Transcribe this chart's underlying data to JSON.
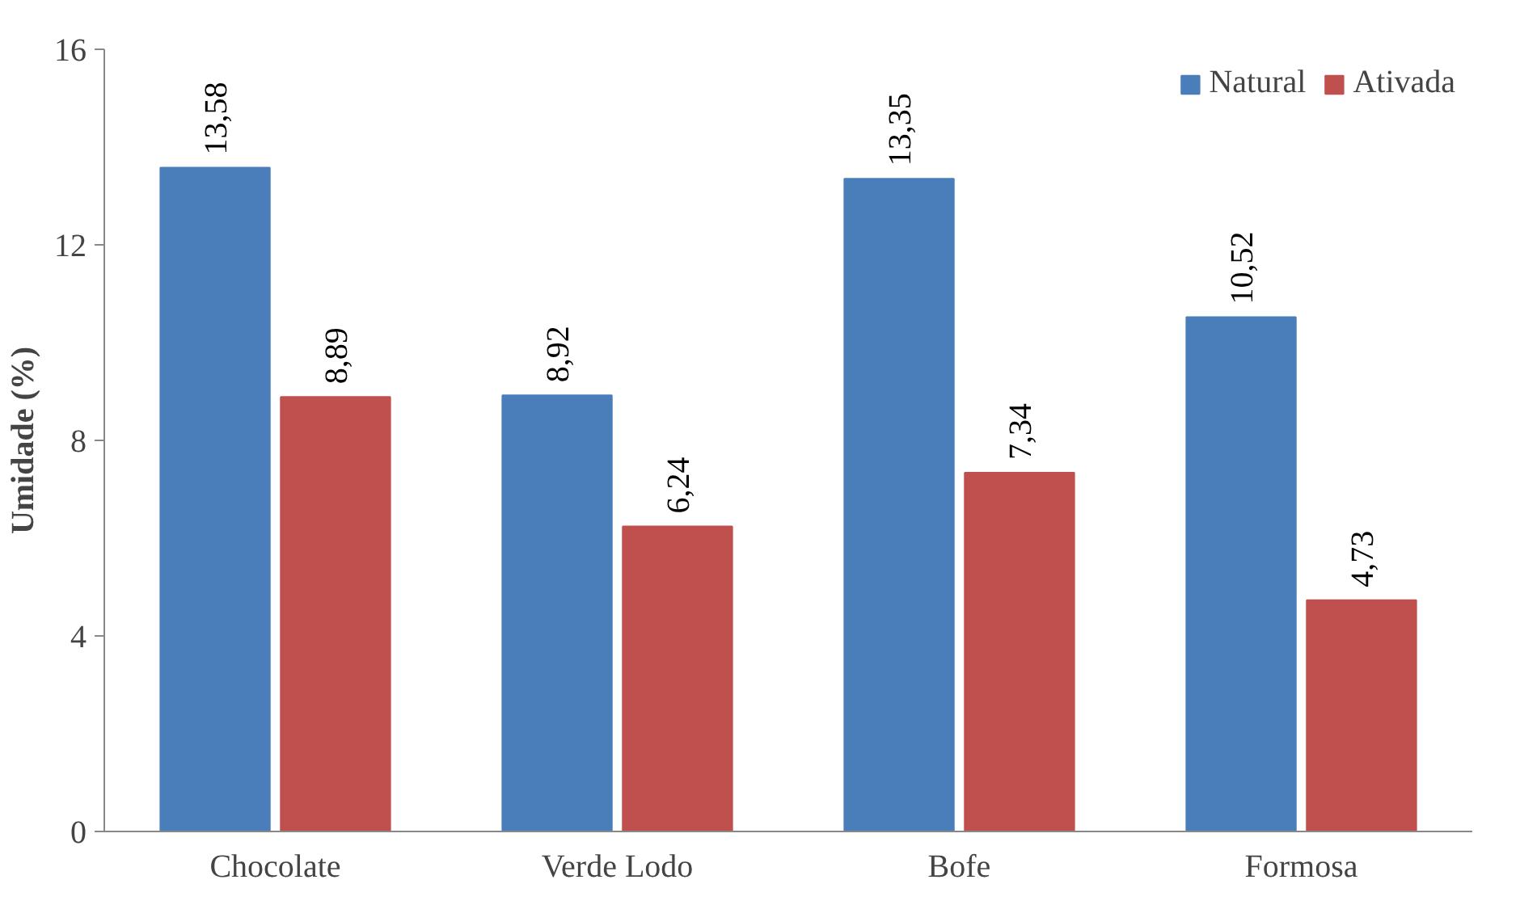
{
  "chart_data": {
    "type": "bar",
    "ylabel": "Umidade (%)",
    "categories": [
      "Chocolate",
      "Verde Lodo",
      "Bofe",
      "Formosa"
    ],
    "series": [
      {
        "name": "Natural",
        "color": "#4a7ebb",
        "values": [
          13.58,
          8.92,
          13.35,
          10.52
        ],
        "value_labels": [
          "13,58",
          "8,92",
          "13,35",
          "10,52"
        ]
      },
      {
        "name": "Ativada",
        "color": "#c0504d",
        "values": [
          8.89,
          6.24,
          7.34,
          4.73
        ],
        "value_labels": [
          "8,89",
          "6,24",
          "7,34",
          "4,73"
        ]
      }
    ],
    "ylim": [
      0,
      16
    ],
    "yticks": [
      0,
      4,
      8,
      12,
      16
    ],
    "grid": false,
    "legend": "top right"
  }
}
